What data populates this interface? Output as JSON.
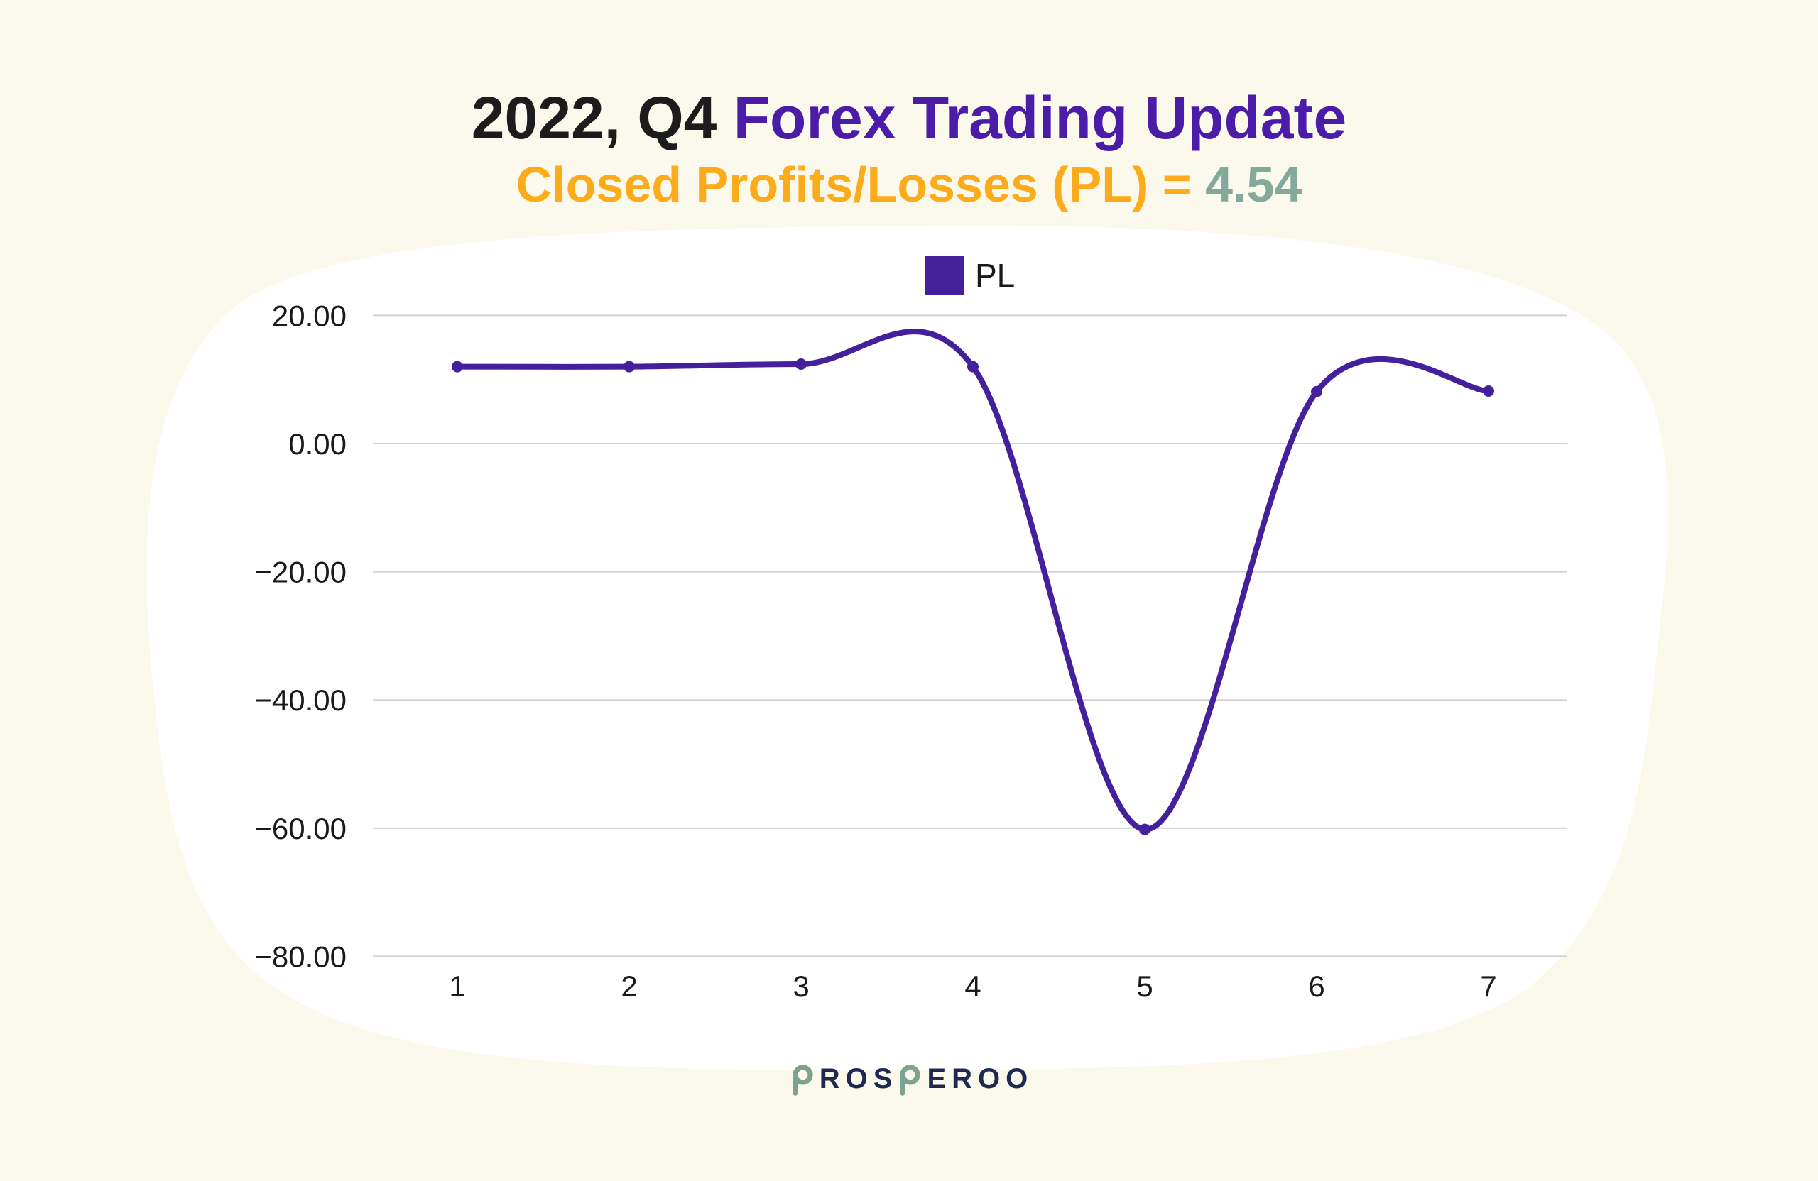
{
  "page": {
    "background_color": "#fbf8ec",
    "card_color": "#ffffff"
  },
  "header": {
    "title_prefix": "2022, Q4 ",
    "title_emphasis": "Forex Trading Update",
    "title_prefix_color": "#1c1c1c",
    "title_emphasis_color": "#4b1ca8",
    "subtitle_label": "Closed Profits/Losses (PL) = ",
    "subtitle_value": "4.54",
    "subtitle_label_color": "#fcab1a",
    "subtitle_value_color": "#82a99a"
  },
  "legend": {
    "items": [
      {
        "label": "PL",
        "color": "#44209d"
      }
    ]
  },
  "chart_data": {
    "type": "line",
    "title": "2022, Q4 Forex Trading Update",
    "subtitle": "Closed Profits/Losses (PL) = 4.54",
    "categories": [
      "1",
      "2",
      "3",
      "4",
      "5",
      "6",
      "7"
    ],
    "series": [
      {
        "name": "PL",
        "color": "#44209d",
        "values": [
          12,
          12,
          12.4,
          12,
          -60.2,
          8.1,
          8.2
        ]
      }
    ],
    "yticks": [
      20,
      0,
      -20,
      -40,
      -60,
      -80
    ],
    "ytick_labels": [
      "20.00",
      "0.00",
      "−20.00",
      "−40.00",
      "−60.00",
      "−80.00"
    ],
    "ylim": [
      -80,
      20
    ],
    "xlabel": "",
    "ylabel": "",
    "grid": "horizontal",
    "gridline_color": "#d2d2d2",
    "tick_label_color": "#1a1a1a",
    "legend_position": "top-center",
    "smooth": true,
    "markers": true
  },
  "footer": {
    "brand": "PROSPEROO",
    "brand_accent_indices": [
      0,
      4
    ],
    "brand_color": "#1f2950",
    "brand_accent_color": "#7ca38f"
  }
}
